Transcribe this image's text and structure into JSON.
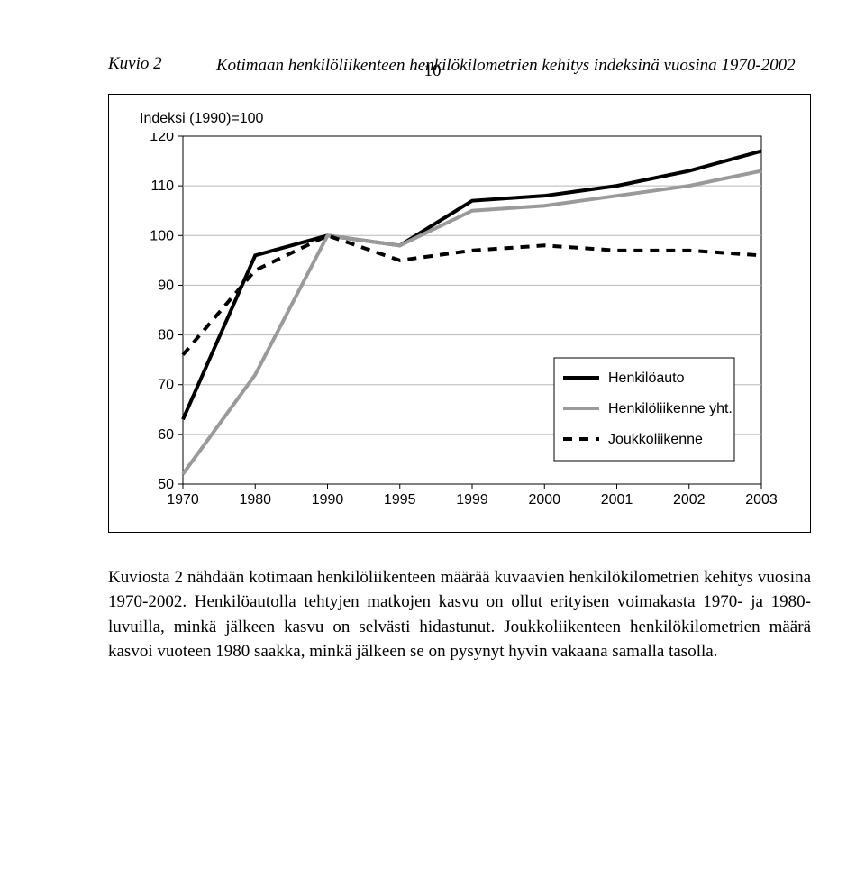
{
  "page_number": "10",
  "caption": {
    "key": "Kuvio 2",
    "text": "Kotimaan henkilöliikenteen henkilökilometrien kehitys indeksinä vuosina 1970-2002"
  },
  "chart": {
    "type": "line",
    "axis_label": "Indeksi (1990)=100",
    "x_labels": [
      "1970",
      "1980",
      "1990",
      "1995",
      "1999",
      "2000",
      "2001",
      "2002",
      "2003"
    ],
    "x_positions": [
      0,
      1,
      2,
      3,
      4,
      5,
      6,
      7,
      8
    ],
    "ylim": [
      50,
      120
    ],
    "ytick_step": 10,
    "background_color": "#ffffff",
    "grid_color": "#b8b8b8",
    "axis_color": "#000000",
    "font_family": "Arial",
    "label_fontsize": 16,
    "series": [
      {
        "name": "Henkilöauto",
        "color": "#000000",
        "width": 4,
        "dash": "none",
        "values": [
          63,
          96,
          100,
          98,
          107,
          108,
          110,
          113,
          117
        ]
      },
      {
        "name": "Henkilöliikenne yht.",
        "color": "#9a9a9a",
        "width": 4,
        "dash": "none",
        "values": [
          52,
          72,
          100,
          98,
          105,
          106,
          108,
          110,
          113
        ]
      },
      {
        "name": "Joukkoliikenne",
        "color": "#000000",
        "width": 4,
        "dash": "10,8",
        "values": [
          76,
          93,
          100,
          95,
          97,
          98,
          97,
          97,
          96
        ]
      }
    ],
    "legend": {
      "position": "inside-bottom-right",
      "border_color": "#000000",
      "background": "#ffffff",
      "item_fontsize": 16
    }
  },
  "body": "Kuviosta 2 nähdään kotimaan henkilöliikenteen määrää kuvaavien henkilökilometrien kehitys vuosina 1970-2002. Henkilöautolla tehtyjen matkojen kasvu on ollut erityisen voimakasta 1970- ja 1980-luvuilla, minkä jälkeen kasvu on selvästi hidastunut. Joukkoliikenteen henkilökilometrien määrä kasvoi vuoteen 1980 saakka, minkä jälkeen se on pysynyt hyvin vakaana samalla tasolla."
}
